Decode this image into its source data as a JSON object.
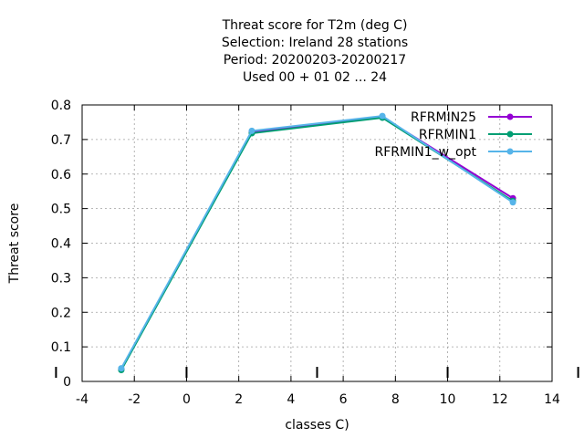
{
  "chart_data": {
    "type": "line",
    "title_lines": [
      "Threat score  for T2m (deg C)",
      "Selection: Ireland      28 stations",
      "Period: 20200203-20200217",
      "Used  00 + 01 02 ... 24"
    ],
    "xlabel": "classes C)",
    "ylabel": "Threat score",
    "xlim": [
      -4,
      14
    ],
    "ylim": [
      0,
      0.8
    ],
    "xticks": [
      -4,
      -2,
      0,
      2,
      4,
      6,
      8,
      10,
      12,
      14
    ],
    "yticks": [
      0,
      0.1,
      0.2,
      0.3,
      0.4,
      0.5,
      0.6,
      0.7,
      0.8
    ],
    "grid": true,
    "legend_position": "top-right",
    "x": [
      -2.5,
      2.5,
      7.5,
      12.5
    ],
    "series": [
      {
        "name": "RFRMIN25",
        "color": "#9400d3",
        "values": [
          0.035,
          0.722,
          0.765,
          0.53
        ]
      },
      {
        "name": "RFRMIN1",
        "color": "#009e73",
        "values": [
          0.033,
          0.718,
          0.763,
          0.522
        ]
      },
      {
        "name": "RFRMIN1_w_opt",
        "color": "#56b4e9",
        "values": [
          0.038,
          0.725,
          0.768,
          0.518
        ]
      }
    ]
  }
}
